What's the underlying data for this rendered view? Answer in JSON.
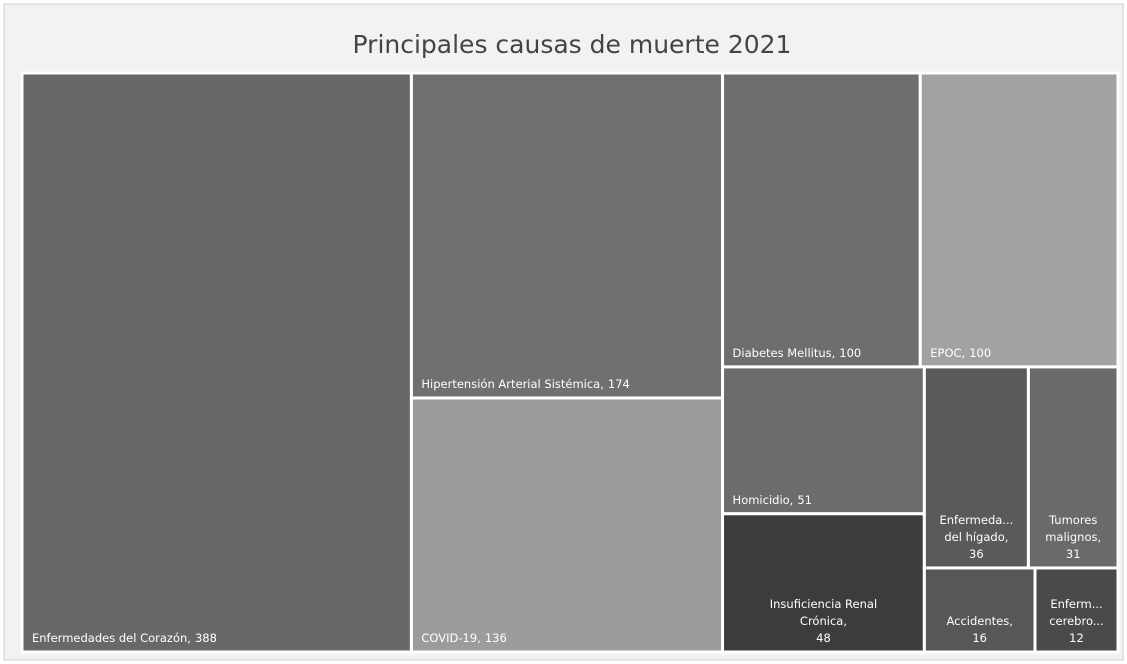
{
  "chart_data": {
    "type": "treemap",
    "title": "Principales causas de muerte 2021",
    "categories": [
      "Enfermedades del Corazón,",
      "Hipertensión Arterial Sistémica,",
      "COVID-19,",
      "Diabetes Mellitus,",
      "EPOC,",
      "Homicidio,",
      "Insuficiencia Renal Crónica,",
      "Enfermeda... del hígado,",
      "Tumores malignos,",
      "Accidentes,",
      "Enferm... cerebro..."
    ],
    "values": [
      388,
      174,
      136,
      100,
      100,
      51,
      48,
      36,
      31,
      16,
      12
    ],
    "colors": [
      "#686868",
      "#707070",
      "#9c9c9c",
      "#6e6e6e",
      "#a2a2a2",
      "#6c6c6c",
      "#3c3c3c",
      "#5a5a5a",
      "#6a6a6a",
      "#575757",
      "#4a4a4a"
    ]
  }
}
